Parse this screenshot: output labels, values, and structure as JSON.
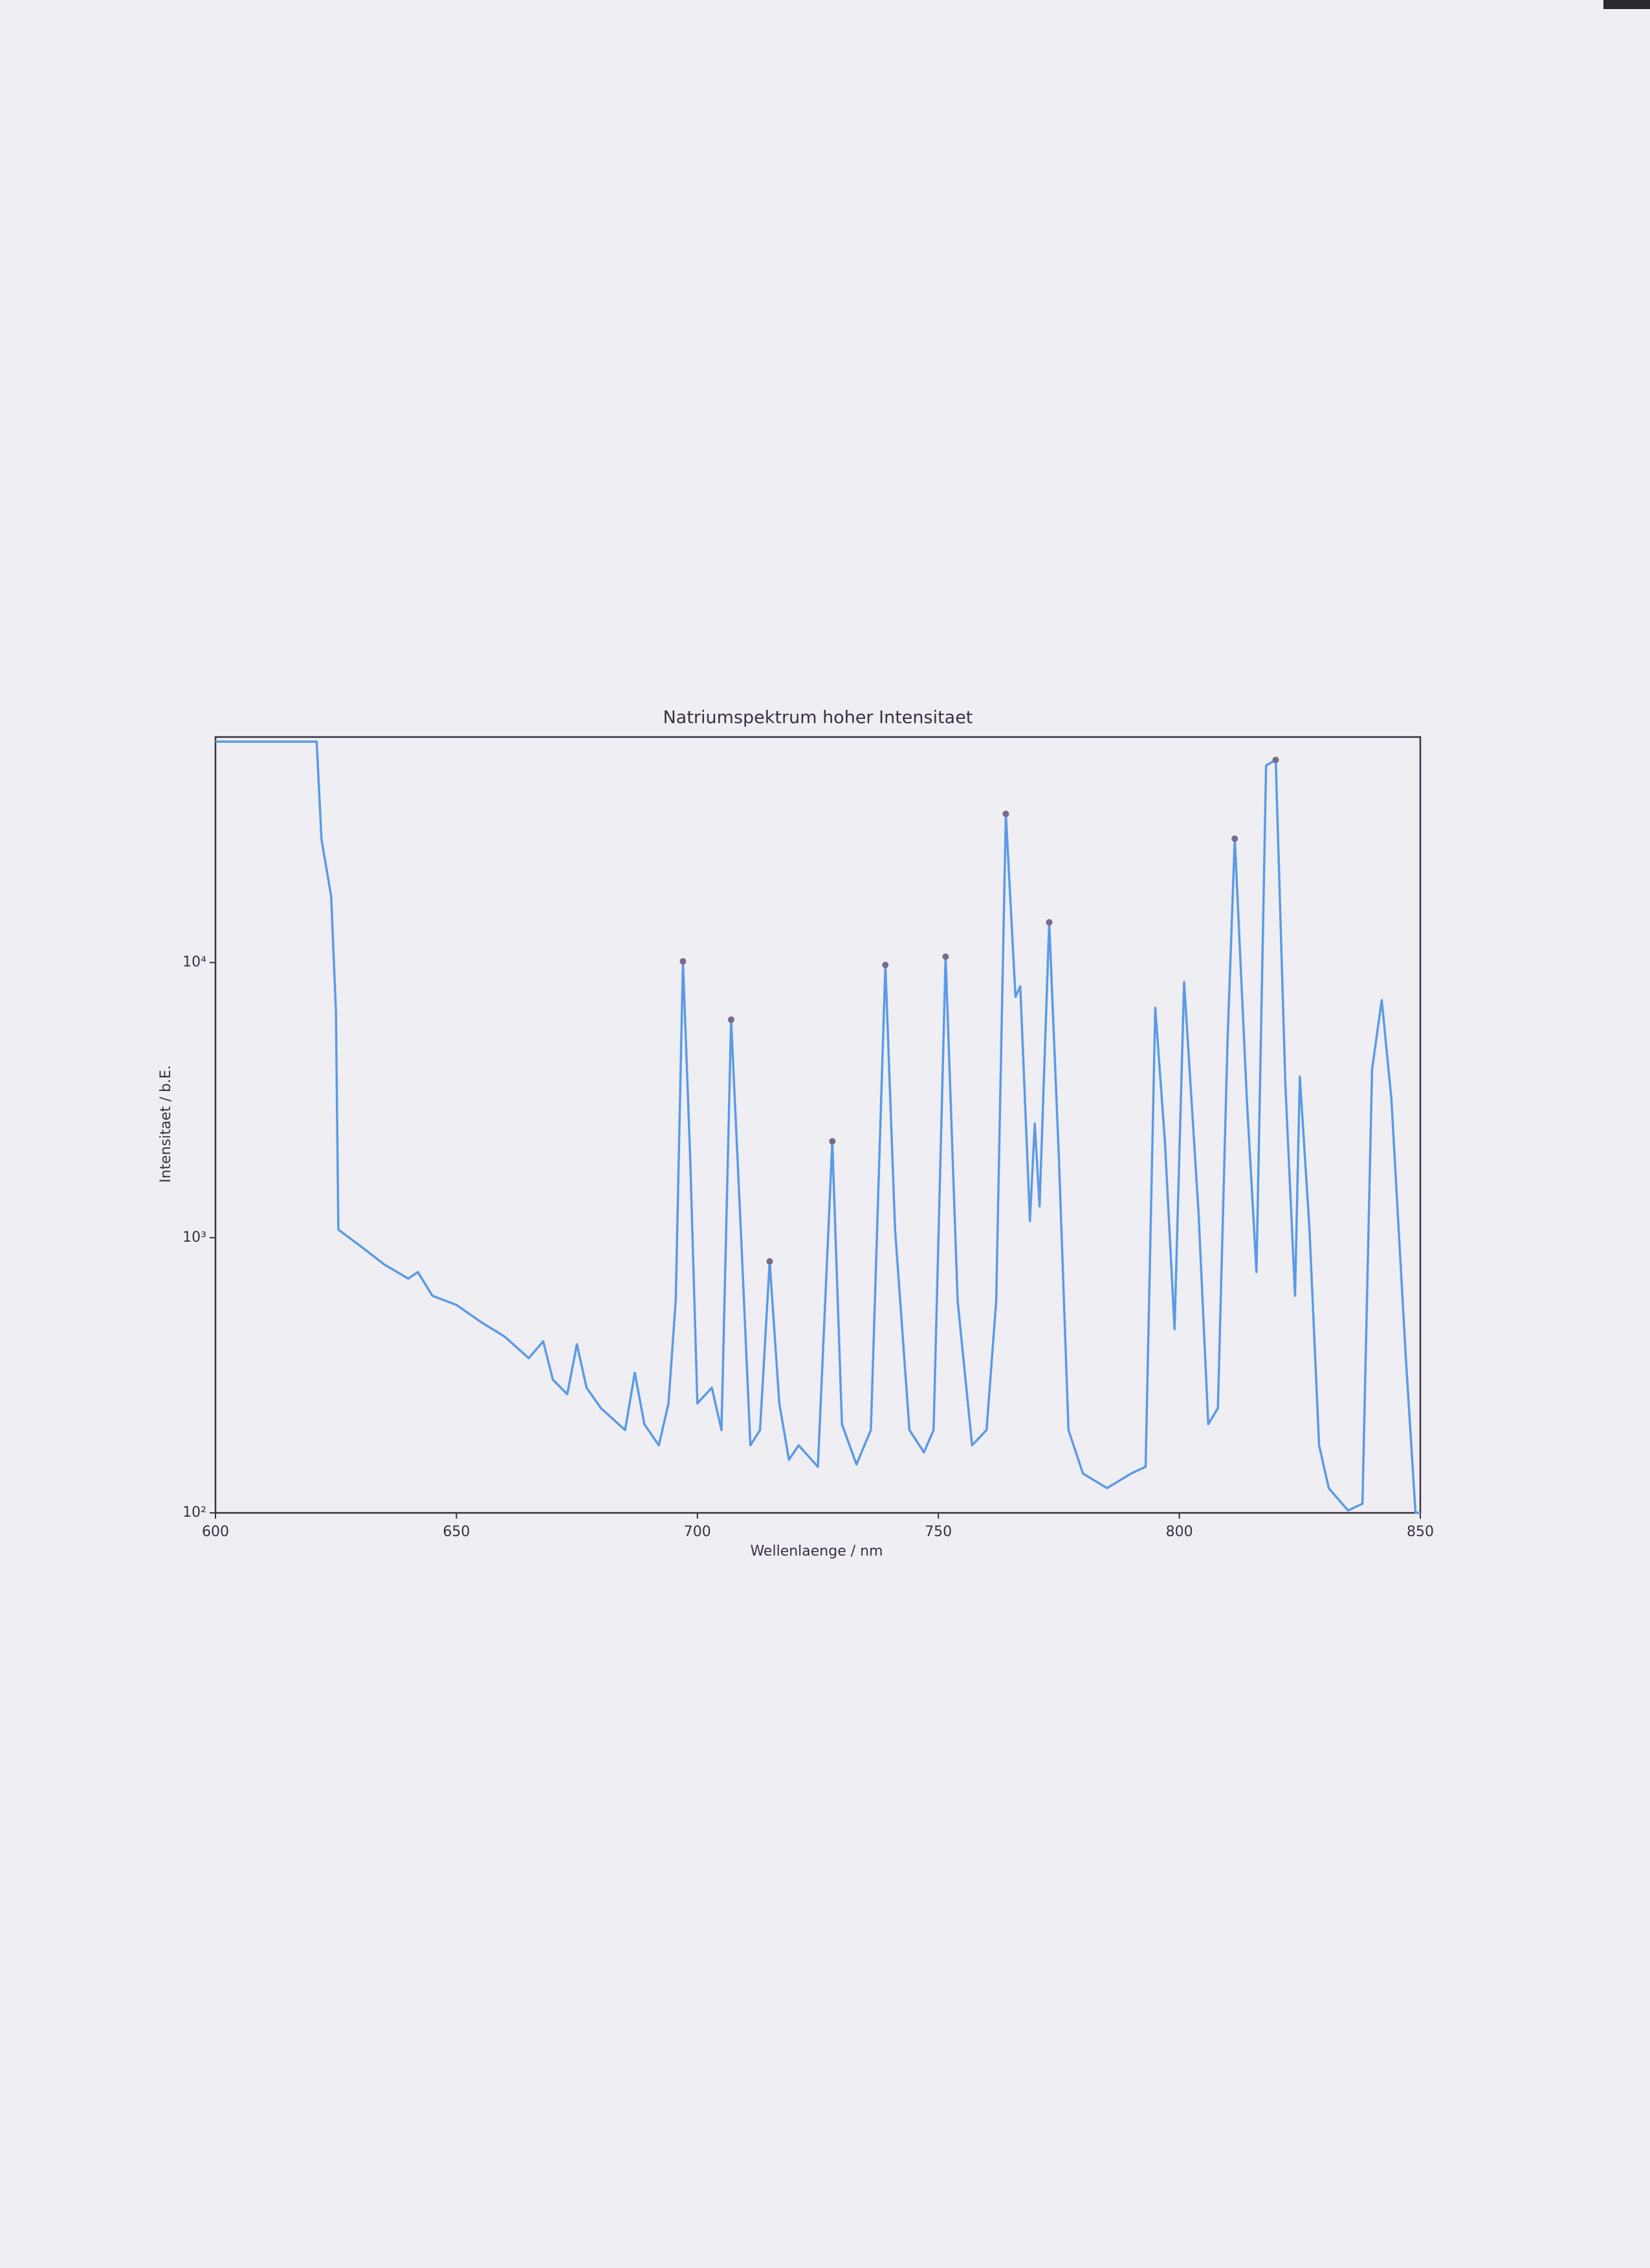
{
  "chart_data": {
    "type": "line",
    "title": "Natriumspektrum hoher Intensitaet",
    "x_label": "Wellenlaenge / nm",
    "y_label": "Intensitaet / b.E.",
    "y_scale": "log",
    "grid": false,
    "xlim": [
      600,
      850
    ],
    "xticks": [
      600,
      650,
      700,
      750,
      800,
      850
    ],
    "ylim": [
      100,
      66000
    ],
    "yticks": [
      {
        "value": 100,
        "label": "10²"
      },
      {
        "value": 1000,
        "label": "10³"
      },
      {
        "value": 10000,
        "label": "10⁴"
      }
    ],
    "series": [
      {
        "color": "#5b9ae6",
        "x": [
          600,
          621,
          622,
          624,
          625,
          625.5,
          630,
          635,
          640,
          642,
          645,
          650,
          655,
          660,
          665,
          668,
          670,
          673,
          675,
          677,
          680,
          685,
          687,
          689,
          692,
          694,
          695.5,
          697,
          698.5,
          700,
          703,
          705,
          707,
          709,
          711,
          713,
          715,
          717,
          719,
          721,
          725,
          728,
          730,
          733,
          736,
          739,
          741,
          744,
          747,
          749,
          751.5,
          754,
          757,
          760,
          762,
          764,
          766,
          767,
          769,
          770,
          771,
          773,
          775,
          777,
          780,
          785,
          790,
          793,
          795,
          797,
          799,
          801,
          804,
          806,
          808,
          810,
          811.5,
          814,
          816,
          818,
          820,
          822,
          824,
          825,
          827,
          829,
          831,
          835,
          838,
          840,
          842,
          844,
          847,
          849,
          850
        ],
        "values": [
          63500,
          63500,
          28000,
          17400,
          6600,
          1070,
          935,
          800,
          710,
          750,
          615,
          570,
          495,
          437,
          365,
          420,
          305,
          270,
          410,
          285,
          240,
          200,
          323,
          210,
          176,
          250,
          590,
          10100,
          1970,
          250,
          285,
          200,
          6200,
          1080,
          176,
          200,
          820,
          250,
          156,
          176,
          147,
          2240,
          210,
          150,
          200,
          9800,
          1080,
          200,
          166,
          200,
          10500,
          590,
          176,
          200,
          590,
          34700,
          7500,
          8200,
          1150,
          2600,
          1300,
          14000,
          1970,
          200,
          139,
          123,
          139,
          147,
          6850,
          2240,
          465,
          8500,
          1220,
          210,
          240,
          5200,
          28200,
          3200,
          750,
          52000,
          54500,
          3600,
          615,
          3850,
          1080,
          176,
          123,
          102,
          108,
          4100,
          7300,
          3200,
          365,
          100,
          100
        ]
      }
    ],
    "markers": {
      "color": "#7a6a8a",
      "x": [
        697,
        707,
        715,
        728,
        739,
        751.5,
        764,
        773,
        811.5,
        820
      ],
      "values": [
        10100,
        6200,
        820,
        2240,
        9800,
        10500,
        34700,
        14000,
        28200,
        54500
      ]
    }
  }
}
